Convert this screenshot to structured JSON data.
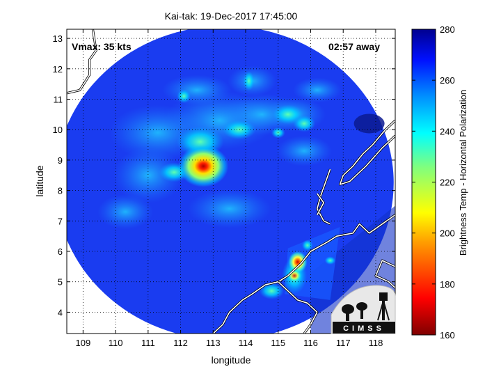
{
  "title": "Kai-tak: 19-Dec-2017 17:45:00",
  "annotations": {
    "vmax": "Vmax: 35 kts",
    "time_away": "02:57 away"
  },
  "logo_text": "CIMSS",
  "colors": {
    "ocean_bg": "#1a3cf0",
    "frame": "#000000",
    "coast": "#ffffff"
  },
  "map": {
    "xlabel": "longitude",
    "ylabel": "latitude",
    "lon_range": [
      108.5,
      118.6
    ],
    "lat_range": [
      3.3,
      13.3
    ],
    "lon_ticks": [
      "109",
      "110",
      "111",
      "112",
      "113",
      "114",
      "115",
      "116",
      "117",
      "118"
    ],
    "lat_ticks": [
      "4",
      "5",
      "6",
      "7",
      "8",
      "9",
      "10",
      "11",
      "12",
      "13"
    ],
    "grid": "dotted",
    "swath_center": [
      113.35,
      8.25
    ],
    "swath_radius_deg": 5.1
  },
  "colorbar": {
    "label": "Brightness Temp - Horizontal Polarization",
    "range": [
      160,
      280
    ],
    "ticks": [
      "160",
      "180",
      "200",
      "220",
      "240",
      "260",
      "280"
    ]
  }
}
